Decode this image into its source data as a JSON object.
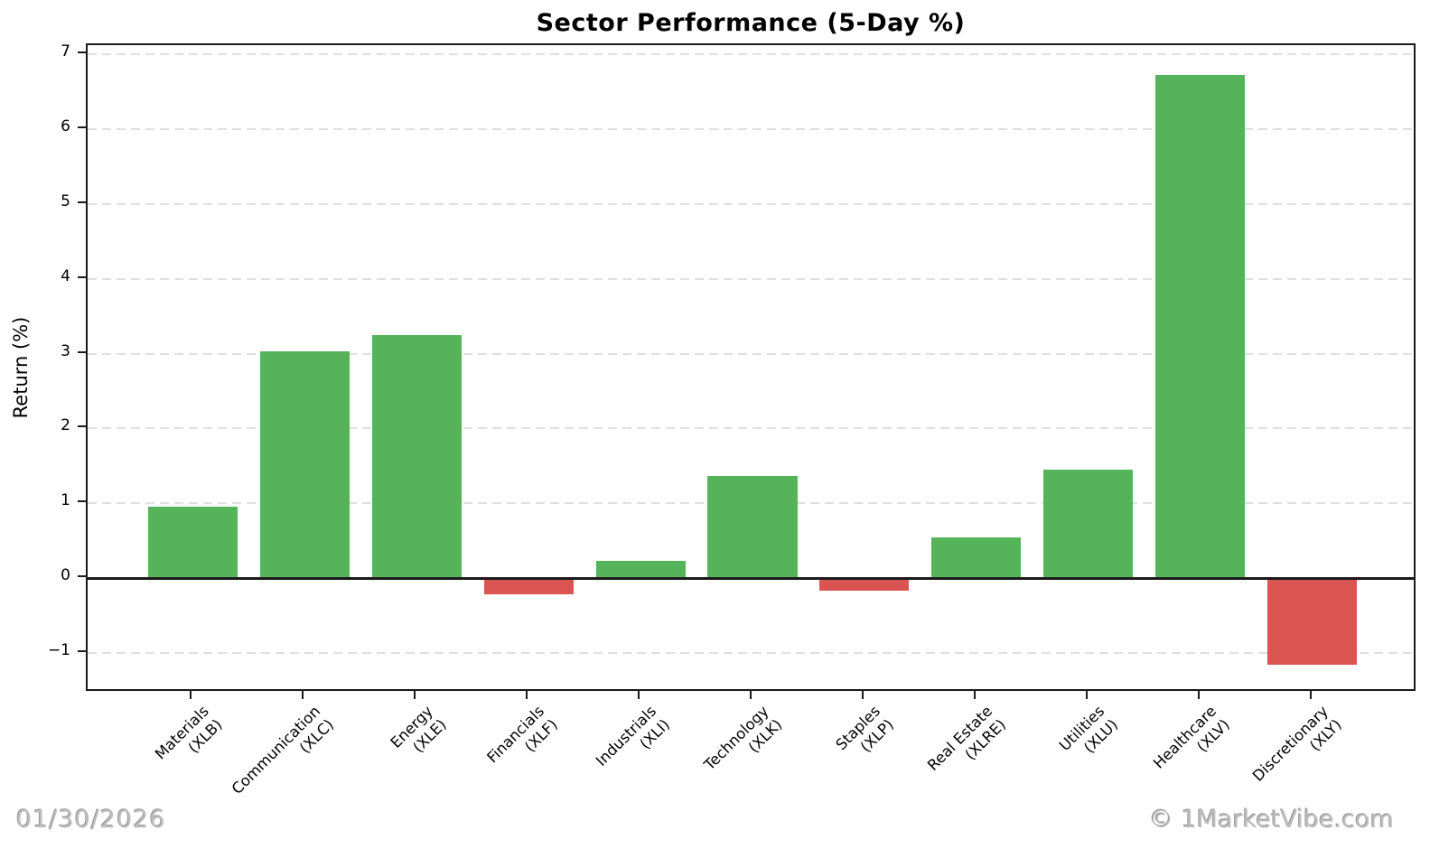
{
  "header": {
    "title": "Sector Performance (5-Day %)"
  },
  "footer": {
    "date": "01/30/2026",
    "watermark": "© 1MarketVibe.com"
  },
  "chart_data": {
    "type": "bar",
    "title": "Sector Performance (5-Day %)",
    "xlabel": "",
    "ylabel": "Return (%)",
    "categories": [
      "Materials (XLB)",
      "Communication (XLC)",
      "Energy (XLE)",
      "Financials (XLF)",
      "Industrials (XLI)",
      "Technology (XLK)",
      "Staples (XLP)",
      "Real Estate (XLRE)",
      "Utilities (XLU)",
      "Healthcare (XLV)",
      "Discretionary (XLY)"
    ],
    "category_lines": [
      [
        "Materials",
        "(XLB)"
      ],
      [
        "Communication",
        "(XLC)"
      ],
      [
        "Energy",
        "(XLE)"
      ],
      [
        "Financials",
        "(XLF)"
      ],
      [
        "Industrials",
        "(XLI)"
      ],
      [
        "Technology",
        "(XLK)"
      ],
      [
        "Staples",
        "(XLP)"
      ],
      [
        "Real Estate",
        "(XLRE)"
      ],
      [
        "Utilities",
        "(XLU)"
      ],
      [
        "Healthcare",
        "(XLV)"
      ],
      [
        "Discretionary",
        "(XLY)"
      ]
    ],
    "values": [
      0.95,
      3.03,
      3.25,
      -0.22,
      0.23,
      1.36,
      -0.17,
      0.55,
      1.45,
      6.72,
      -1.16
    ],
    "yticks": [
      -1,
      0,
      1,
      2,
      3,
      4,
      5,
      6,
      7
    ],
    "ytick_labels": [
      "−1",
      "0",
      "1",
      "2",
      "3",
      "4",
      "5",
      "6",
      "7"
    ],
    "ylim": [
      -1.53,
      7.12
    ],
    "grid": "horizontal-dashed",
    "legend_position": "none",
    "colors": {
      "positive_bar": "#55b45a",
      "negative_bar": "#da5451",
      "gridline": "#e0e0e0",
      "axis": "#1a1a1a",
      "footer_text": "#bdbdbd"
    }
  }
}
